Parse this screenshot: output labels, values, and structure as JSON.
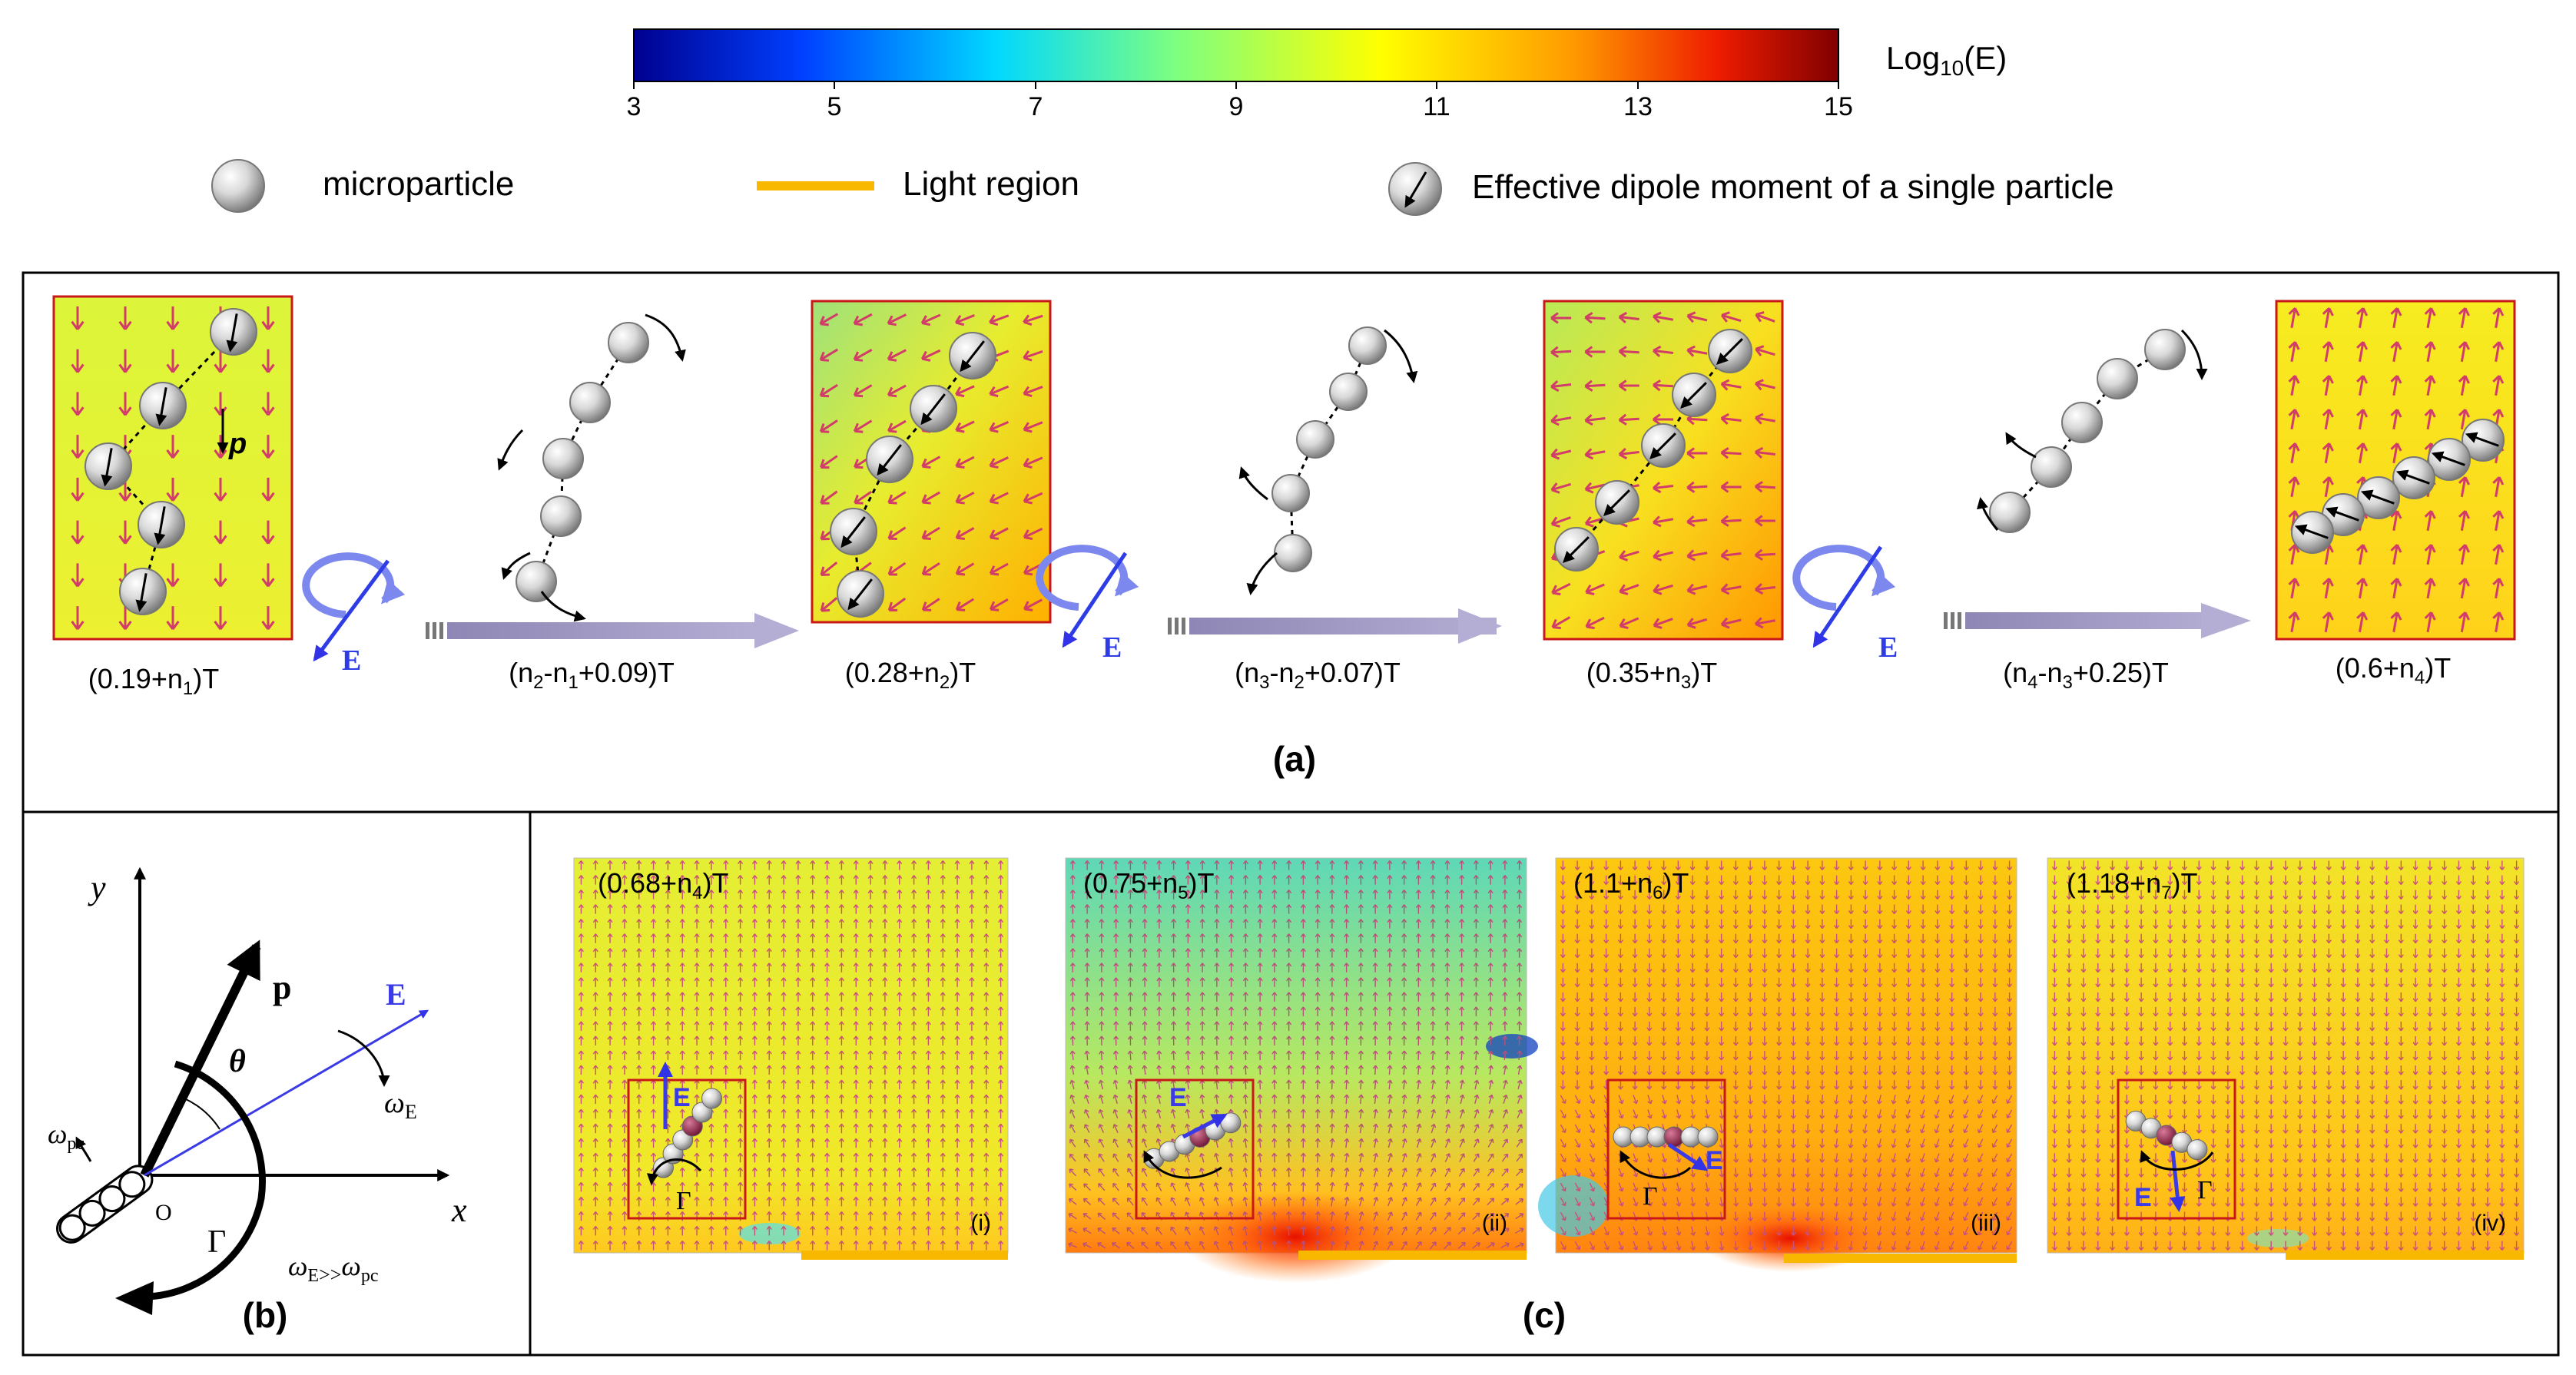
{
  "colorbar": {
    "label_main": "Log",
    "label_sub": "10",
    "label_tail": "(E)",
    "ticks": [
      "3",
      "5",
      "7",
      "9",
      "11",
      "13",
      "15"
    ],
    "colors": [
      "#00008f",
      "#0050ff",
      "#00e0ff",
      "#7dff80",
      "#ffff00",
      "#ff9a00",
      "#ee1c00",
      "#800000"
    ]
  },
  "legend": {
    "microparticle": "microparticle",
    "light_region": "Light region",
    "dipole": "Effective dipole moment of a single particle"
  },
  "panel_a": {
    "caption": "(a)",
    "field_label": "E",
    "dipole_label": "p",
    "frame_labels": [
      {
        "pre": "(0.19+n",
        "sub": "1",
        "post": ")T"
      },
      {
        "pre": "(0.28+n",
        "sub": "2",
        "post": ")T"
      },
      {
        "pre": "(0.35+n",
        "sub": "3",
        "post": ")T"
      },
      {
        "pre": "(0.6+n",
        "sub": "4",
        "post": ")T"
      }
    ],
    "transition_labels": [
      {
        "p1": "(n",
        "s1": "2",
        "p2": "-n",
        "s2": "1",
        "p3": "+0.09)T"
      },
      {
        "p1": "(n",
        "s1": "3",
        "p2": "-n",
        "s2": "2",
        "p3": "+0.07)T"
      },
      {
        "p1": "(n",
        "s1": "4",
        "p2": "-n",
        "s2": "3",
        "p3": "+0.25)T"
      }
    ]
  },
  "panel_b": {
    "caption": "(b)",
    "y": "y",
    "x": "x",
    "p": "p",
    "E": "E",
    "theta": "θ",
    "omega": "ω",
    "sub_E": "E",
    "sub_pc": "pc",
    "origin": "O",
    "gamma": "Γ",
    "relation": ">>"
  },
  "panel_c": {
    "caption": "(c)",
    "torque": "Γ",
    "field": "E",
    "panels": [
      {
        "pre": "(0.68+n",
        "sub": "4",
        "post": ")T",
        "roman": "(i)"
      },
      {
        "pre": "(0.75+n",
        "sub": "5",
        "post": ")T",
        "roman": "(ii)"
      },
      {
        "pre": "(1.1+n",
        "sub": "6",
        "post": ")T",
        "roman": "(iii)"
      },
      {
        "pre": "(1.18+n",
        "sub": "7",
        "post": ")T",
        "roman": "(iv)"
      }
    ]
  }
}
